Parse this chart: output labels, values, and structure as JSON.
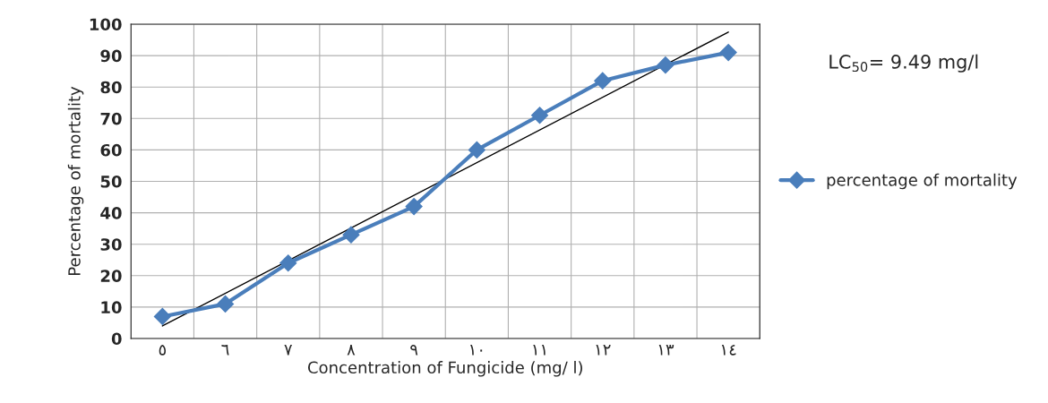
{
  "chart_data": {
    "type": "line",
    "xlabel": "Concentration of Fungicide (mg/ l)",
    "ylabel": "Percentage of mortality",
    "categories": [
      "٥",
      "٦",
      "٧",
      "٨",
      "٩",
      "١٠",
      "١١",
      "١٢",
      "١٣",
      "١٤"
    ],
    "series": [
      {
        "name": "percentage of mortality",
        "color": "#4a7ebb",
        "marker": "diamond",
        "values": [
          7,
          11,
          24,
          33,
          42,
          60,
          71,
          82,
          87,
          91
        ]
      },
      {
        "type": "line",
        "color": "#000000",
        "marker": "none",
        "x": [
          "٥",
          "١٤"
        ],
        "values": [
          4,
          97.5
        ]
      }
    ],
    "ylim": [
      0,
      100
    ],
    "yticks": [
      0,
      10,
      20,
      30,
      40,
      50,
      60,
      70,
      80,
      90,
      100
    ],
    "grid": true,
    "legend": "right",
    "annotations": [
      "LC$_{50}$= 9.49 mg/l"
    ]
  }
}
